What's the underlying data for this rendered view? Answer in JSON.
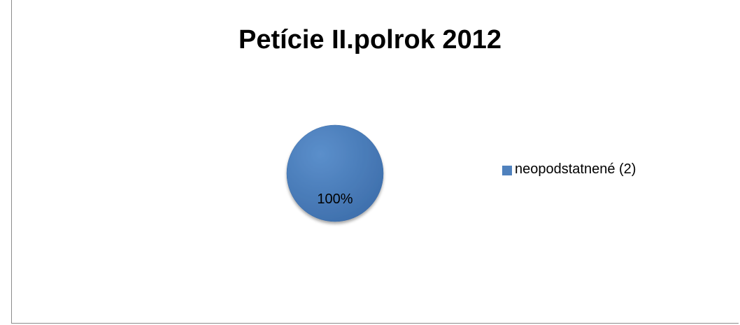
{
  "chart_data": {
    "type": "pie",
    "title": "Petície II.polrok 2012",
    "series": [
      {
        "values": [
          100
        ],
        "data_labels": [
          "100%"
        ]
      }
    ],
    "categories": [
      "neopodstatnené (2)"
    ],
    "legend": {
      "placement": "right",
      "entries": [
        "neopodstatnené (2)"
      ]
    },
    "colors": [
      "#4f81bd"
    ]
  }
}
